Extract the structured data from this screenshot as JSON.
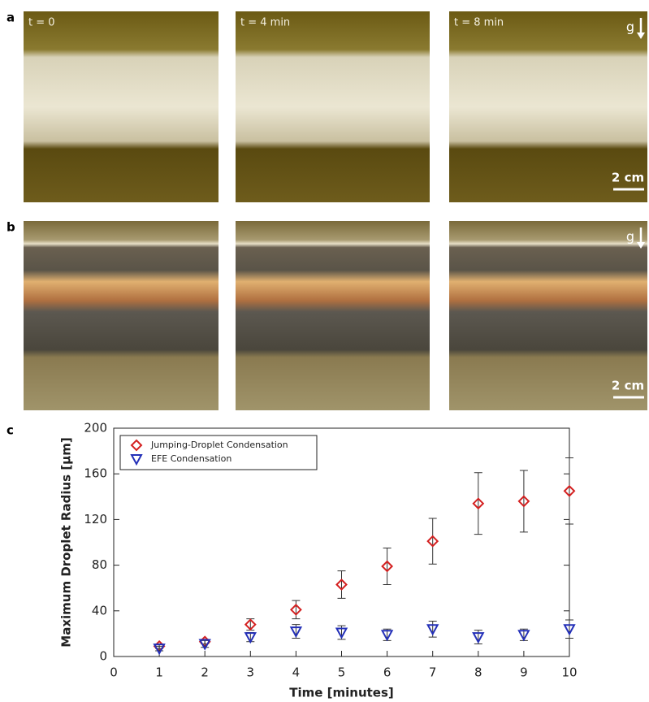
{
  "panels": [
    {
      "label": "a",
      "times": [
        "t = 0",
        "t = 4 min",
        "t = 8 min"
      ],
      "gravity": "g",
      "scale": "2 cm"
    },
    {
      "label": "b",
      "gravity": "g",
      "scale": "2 cm"
    },
    {
      "label": "c"
    }
  ],
  "chart_data": {
    "type": "scatter",
    "x_label": "Time [minutes]",
    "y_label": "Maximum Droplet Radius [µm]",
    "x": [
      1,
      2,
      3,
      4,
      5,
      6,
      7,
      8,
      9,
      10
    ],
    "series": [
      {
        "name": "Jumping-Droplet Condensation",
        "color": "#d42020",
        "marker": "diamond",
        "values": [
          9,
          13,
          28,
          41,
          63,
          79,
          101,
          134,
          136,
          145
        ],
        "errors": [
          2,
          2,
          5,
          8,
          12,
          16,
          20,
          27,
          27,
          29
        ]
      },
      {
        "name": "EFE Condensation",
        "color": "#2430b8",
        "marker": "triangle-down",
        "values": [
          7,
          11,
          17,
          22,
          21,
          19,
          24,
          17,
          19,
          24
        ],
        "errors": [
          2,
          3,
          4,
          6,
          6,
          5,
          7,
          6,
          5,
          8
        ]
      }
    ],
    "xlim": [
      0,
      10
    ],
    "xticks": [
      0,
      1,
      2,
      3,
      4,
      5,
      6,
      7,
      8,
      9,
      10
    ],
    "ylim": [
      0,
      200
    ],
    "yticks": [
      0,
      40,
      80,
      120,
      160,
      200
    ],
    "legend": "upper left"
  }
}
